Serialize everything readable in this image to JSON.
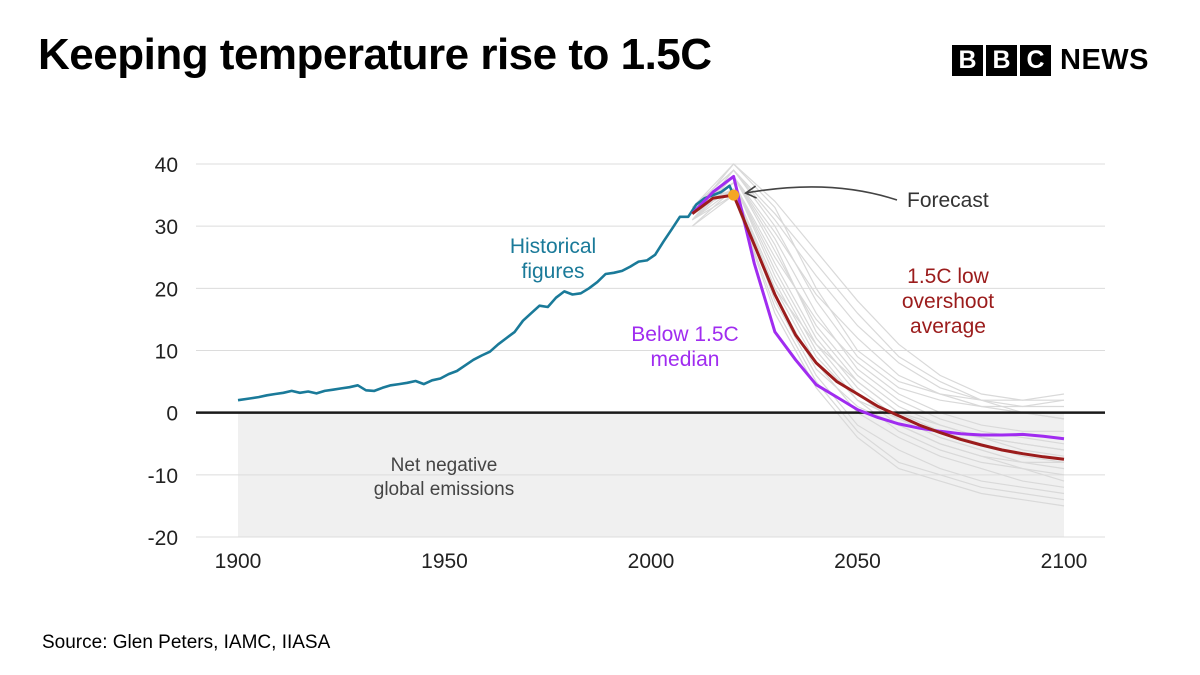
{
  "title": "Keeping temperature rise to 1.5C",
  "logo": {
    "blocks": [
      "B",
      "B",
      "C"
    ],
    "word": "NEWS"
  },
  "source": "Source: Glen Peters, IAMC, IIASA",
  "colors": {
    "historical": "#1a7a99",
    "below": "#a02cf0",
    "low_overshoot": "#9b1c1c",
    "scenario": "#d9d9d9",
    "forecast_dot": "#f5a623",
    "negative_area": "#f0f0f0",
    "grid": "#dcdcdc"
  },
  "chart_data": {
    "type": "line",
    "xlim": [
      1900,
      2100
    ],
    "ylim": [
      -20,
      40
    ],
    "x_ticks": [
      "1900",
      "1950",
      "2000",
      "2050",
      "2100"
    ],
    "y_ticks": [
      "40",
      "30",
      "20",
      "10",
      "0",
      "-10",
      "-20"
    ],
    "grid": true,
    "annotations": {
      "historical": [
        "Historical",
        "figures"
      ],
      "below": [
        "Below 1.5C",
        "median"
      ],
      "overshoot": [
        "1.5C low",
        "overshoot",
        "average"
      ],
      "forecast": "Forecast",
      "negative": [
        "Net negative",
        "global emissions"
      ]
    },
    "forecast_point": {
      "x": 2020,
      "y": 35
    },
    "negative_region": {
      "x": [
        1900,
        2100
      ],
      "y": [
        -20,
        0
      ]
    },
    "series": [
      {
        "name": "Historical figures",
        "key": "historical",
        "x": [
          1900,
          1903,
          1905,
          1907,
          1909,
          1911,
          1913,
          1915,
          1917,
          1919,
          1921,
          1923,
          1925,
          1927,
          1929,
          1931,
          1933,
          1935,
          1937,
          1939,
          1941,
          1943,
          1945,
          1947,
          1949,
          1951,
          1953,
          1955,
          1957,
          1959,
          1961,
          1963,
          1965,
          1967,
          1969,
          1971,
          1973,
          1975,
          1977,
          1979,
          1981,
          1983,
          1985,
          1987,
          1989,
          1991,
          1993,
          1995,
          1997,
          1999,
          2001,
          2003,
          2005,
          2007,
          2009,
          2011,
          2013,
          2015,
          2017,
          2019,
          2020
        ],
        "values": [
          2.0,
          2.3,
          2.5,
          2.8,
          3.0,
          3.2,
          3.5,
          3.2,
          3.4,
          3.1,
          3.5,
          3.7,
          3.9,
          4.1,
          4.4,
          3.6,
          3.5,
          4.0,
          4.4,
          4.6,
          4.8,
          5.1,
          4.6,
          5.2,
          5.5,
          6.2,
          6.7,
          7.6,
          8.5,
          9.2,
          9.8,
          11.0,
          12.0,
          13.0,
          14.8,
          16.0,
          17.2,
          17.0,
          18.5,
          19.5,
          19.0,
          19.2,
          20.0,
          21.0,
          22.3,
          22.5,
          22.8,
          23.5,
          24.3,
          24.5,
          25.4,
          27.5,
          29.5,
          31.5,
          31.5,
          33.5,
          34.5,
          35.0,
          35.5,
          36.5,
          35.0
        ]
      },
      {
        "name": "Below 1.5C median",
        "key": "below",
        "x": [
          2010,
          2015,
          2020,
          2025,
          2030,
          2035,
          2040,
          2045,
          2050,
          2055,
          2060,
          2065,
          2070,
          2075,
          2080,
          2085,
          2090,
          2095,
          2100
        ],
        "values": [
          32.0,
          35.5,
          38.0,
          24.0,
          13.0,
          8.5,
          4.5,
          2.5,
          0.5,
          -0.8,
          -1.8,
          -2.5,
          -3.0,
          -3.4,
          -3.6,
          -3.6,
          -3.5,
          -3.8,
          -4.2
        ]
      },
      {
        "name": "1.5C low overshoot average",
        "key": "low_overshoot",
        "x": [
          2010,
          2015,
          2020,
          2025,
          2030,
          2035,
          2040,
          2045,
          2050,
          2055,
          2060,
          2065,
          2070,
          2075,
          2080,
          2085,
          2090,
          2095,
          2100
        ],
        "values": [
          32.0,
          34.5,
          35.0,
          27.0,
          19.0,
          12.5,
          8.0,
          5.0,
          3.0,
          1.0,
          -0.5,
          -2.0,
          -3.2,
          -4.3,
          -5.2,
          -6.0,
          -6.6,
          -7.1,
          -7.5
        ]
      },
      {
        "name": "Scenarios",
        "key": "scenario",
        "x": [
          2010,
          2020,
          2030,
          2040,
          2050,
          2060,
          2070,
          2080,
          2090,
          2100
        ],
        "scenarios": [
          [
            32,
            40,
            33,
            20,
            10,
            5,
            3,
            2,
            2,
            3
          ],
          [
            33,
            39,
            30,
            18,
            9,
            4,
            2,
            1,
            0,
            -1
          ],
          [
            31,
            38,
            26,
            14,
            6,
            1,
            -2,
            -4,
            -5,
            -6
          ],
          [
            32,
            37,
            22,
            10,
            2,
            -3,
            -6,
            -8,
            -9,
            -10
          ],
          [
            33,
            36,
            20,
            8,
            0,
            -4,
            -7,
            -9,
            -11,
            -12
          ],
          [
            31,
            37,
            24,
            12,
            4,
            -1,
            -4,
            -6,
            -8,
            -9
          ],
          [
            32,
            38,
            28,
            16,
            7,
            2,
            -1,
            -3,
            -4,
            -5
          ],
          [
            30,
            36,
            18,
            6,
            -2,
            -6,
            -9,
            -11,
            -12,
            -13
          ],
          [
            31,
            35,
            17,
            5,
            -3,
            -8,
            -10,
            -12,
            -13,
            -14
          ],
          [
            32,
            38,
            29,
            19,
            12,
            6,
            3,
            1,
            1,
            2
          ],
          [
            33,
            39,
            31,
            22,
            14,
            8,
            4,
            2,
            1,
            1
          ],
          [
            32,
            36,
            19,
            7,
            1,
            -2,
            -5,
            -7,
            -8,
            -8
          ],
          [
            31,
            37,
            25,
            15,
            8,
            3,
            0,
            -2,
            -3,
            -3
          ],
          [
            32,
            38,
            27,
            13,
            5,
            0,
            -3,
            -5,
            -7,
            -8
          ],
          [
            33,
            37,
            23,
            11,
            3,
            -2,
            -5,
            -7,
            -9,
            -11
          ],
          [
            31,
            39,
            32,
            24,
            16,
            9,
            5,
            2,
            0,
            -1
          ],
          [
            30,
            35,
            16,
            4,
            -4,
            -9,
            -11,
            -13,
            -14,
            -15
          ],
          [
            32,
            36,
            21,
            9,
            2,
            -1,
            -3,
            -4,
            -5,
            -6
          ],
          [
            33,
            40,
            34,
            26,
            18,
            11,
            6,
            3,
            2,
            2
          ],
          [
            31,
            36,
            20,
            11,
            5,
            0,
            -2,
            -4,
            -6,
            -7
          ]
        ]
      }
    ]
  }
}
